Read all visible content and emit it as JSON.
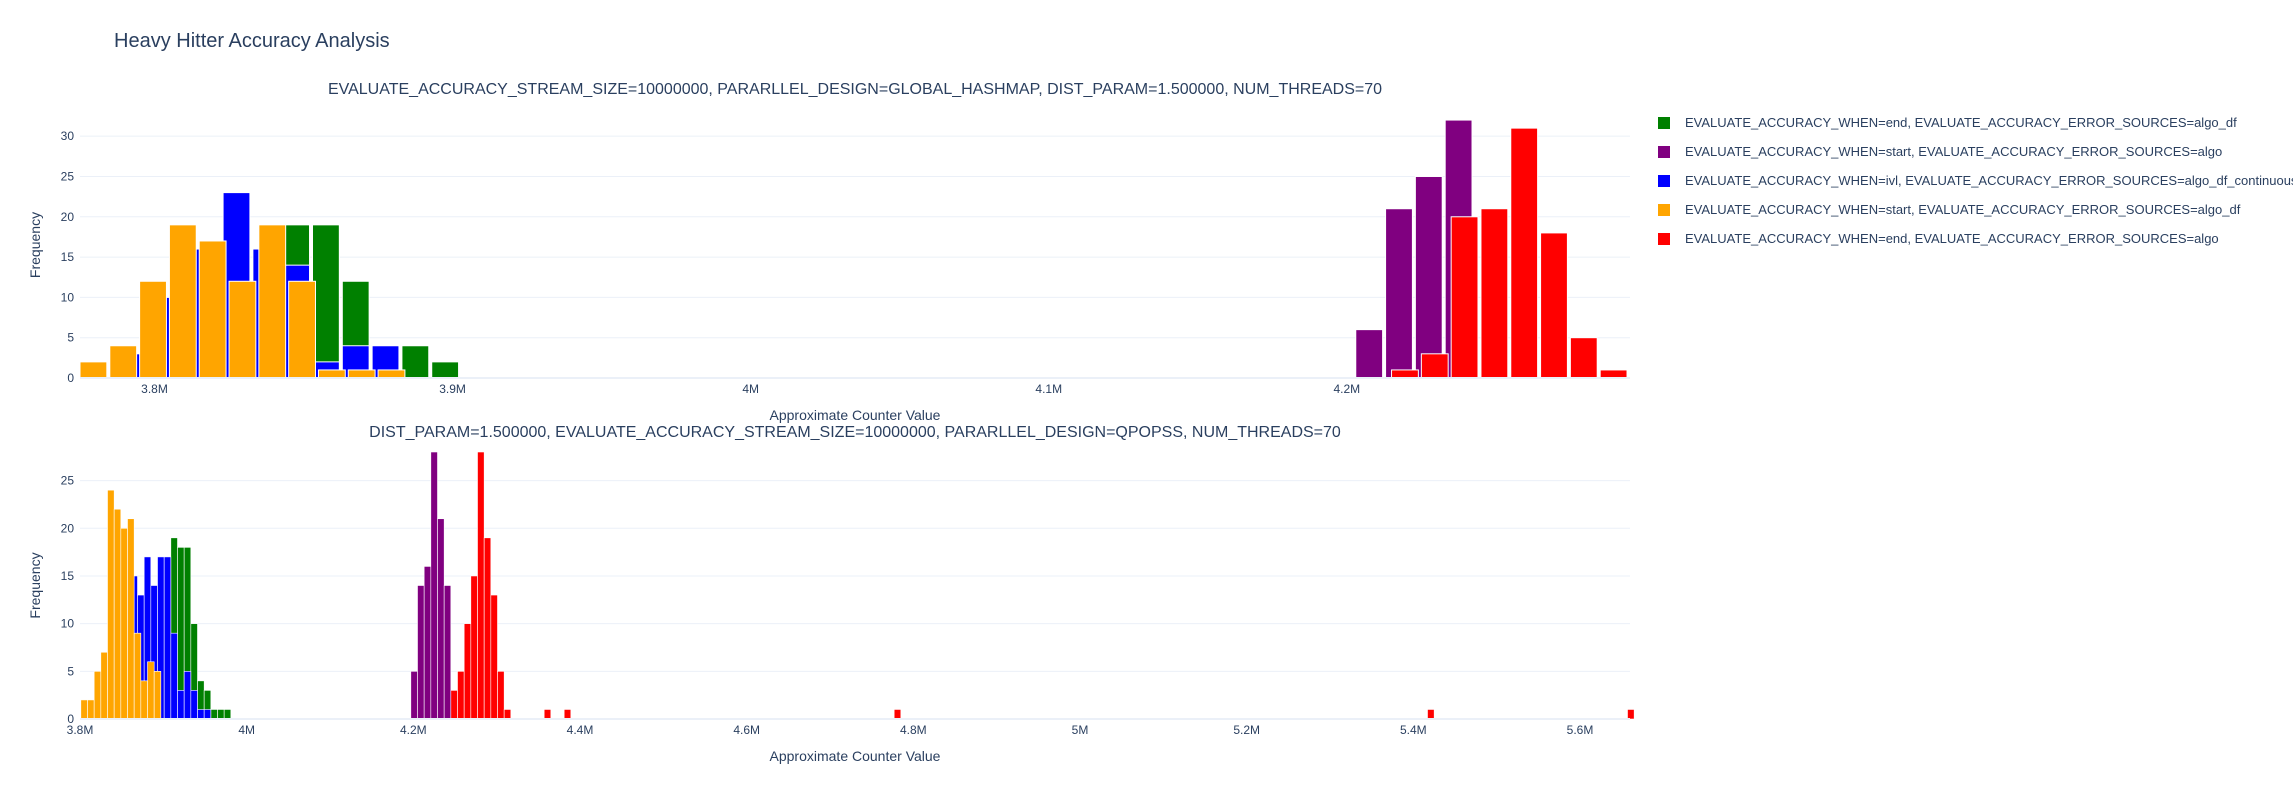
{
  "title": "Heavy Hitter Accuracy Analysis",
  "legend": [
    {
      "label": "EVALUATE_ACCURACY_WHEN=end, EVALUATE_ACCURACY_ERROR_SOURCES=algo_df",
      "color": "#008000"
    },
    {
      "label": "EVALUATE_ACCURACY_WHEN=start, EVALUATE_ACCURACY_ERROR_SOURCES=algo",
      "color": "#800080"
    },
    {
      "label": "EVALUATE_ACCURACY_WHEN=ivl, EVALUATE_ACCURACY_ERROR_SOURCES=algo_df_continuous",
      "color": "#0000ff"
    },
    {
      "label": "EVALUATE_ACCURACY_WHEN=start, EVALUATE_ACCURACY_ERROR_SOURCES=algo_df",
      "color": "#ffa500"
    },
    {
      "label": "EVALUATE_ACCURACY_WHEN=end, EVALUATE_ACCURACY_ERROR_SOURCES=algo",
      "color": "#ff0000"
    }
  ],
  "chart_data": [
    {
      "type": "bar",
      "title": "EVALUATE_ACCURACY_STREAM_SIZE=10000000, PARARLLEL_DESIGN=GLOBAL_HASHMAP, DIST_PARAM=1.500000, NUM_THREADS=70",
      "xlabel": "Approximate Counter Value",
      "ylabel": "Frequency",
      "xlim": [
        3775000,
        4295000
      ],
      "ylim": [
        0,
        33
      ],
      "xticks": [
        3800000,
        3900000,
        4000000,
        4100000,
        4200000
      ],
      "xtick_labels": [
        "3.8M",
        "3.9M",
        "4M",
        "4.1M",
        "4.2M"
      ],
      "yticks": [
        0,
        5,
        10,
        15,
        20,
        25,
        30
      ],
      "grid": true,
      "series": [
        {
          "name": "EVALUATE_ACCURACY_WHEN=end, EVALUATE_ACCURACY_ERROR_SOURCES=algo_df",
          "color": "#008000",
          "bin_width": 9000,
          "x": [
            3827500,
            3837500,
            3847500,
            3857500,
            3867500,
            3877500,
            3887500,
            3897500
          ],
          "y": [
            18,
            12,
            19,
            19,
            12,
            4,
            4,
            2
          ]
        },
        {
          "name": "EVALUATE_ACCURACY_WHEN=start, EVALUATE_ACCURACY_ERROR_SOURCES=algo",
          "color": "#800080",
          "bin_width": 9000,
          "x": [
            4207500,
            4217500,
            4227500,
            4237500
          ],
          "y": [
            6,
            21,
            25,
            32
          ]
        },
        {
          "name": "EVALUATE_ACCURACY_WHEN=ivl, EVALUATE_ACCURACY_ERROR_SOURCES=algo_df_continuous",
          "color": "#0000ff",
          "bin_width": 9000,
          "x": [
            3797500,
            3807500,
            3817500,
            3827500,
            3837500,
            3847500,
            3857500,
            3867500,
            3877500
          ],
          "y": [
            3,
            10,
            16,
            23,
            16,
            14,
            2,
            4,
            4
          ]
        },
        {
          "name": "EVALUATE_ACCURACY_WHEN=start, EVALUATE_ACCURACY_ERROR_SOURCES=algo_df",
          "color": "#ffa500",
          "bin_width": 9000,
          "x": [
            3779500,
            3789500,
            3799500,
            3809500,
            3819500,
            3829500,
            3839500,
            3849500,
            3859500,
            3869500,
            3879500
          ],
          "y": [
            2,
            4,
            12,
            19,
            17,
            12,
            19,
            12,
            1,
            1,
            1
          ]
        },
        {
          "name": "EVALUATE_ACCURACY_WHEN=end, EVALUATE_ACCURACY_ERROR_SOURCES=algo",
          "color": "#ff0000",
          "bin_width": 9000,
          "x": [
            4219500,
            4229500,
            4239500,
            4249500,
            4259500,
            4269500,
            4279500,
            4289500
          ],
          "y": [
            1,
            3,
            20,
            21,
            31,
            18,
            5,
            1
          ]
        }
      ]
    },
    {
      "type": "bar",
      "title": "DIST_PARAM=1.500000, EVALUATE_ACCURACY_STREAM_SIZE=10000000, PARARLLEL_DESIGN=QPOPSS, NUM_THREADS=70",
      "xlabel": "Approximate Counter Value",
      "ylabel": "Frequency",
      "xlim": [
        3800000,
        5660000
      ],
      "ylim": [
        0,
        28
      ],
      "xticks": [
        3800000,
        4000000,
        4200000,
        4400000,
        4600000,
        4800000,
        5000000,
        5200000,
        5400000,
        5600000
      ],
      "xtick_labels": [
        "3.8M",
        "4M",
        "4.2M",
        "4.4M",
        "4.6M",
        "4.8M",
        "5M",
        "5.2M",
        "5.4M",
        "5.6M"
      ],
      "yticks": [
        0,
        5,
        10,
        15,
        20,
        25
      ],
      "grid": true,
      "series": [
        {
          "name": "EVALUATE_ACCURACY_WHEN=end, EVALUATE_ACCURACY_ERROR_SOURCES=algo_df",
          "color": "#008000",
          "bin_width": 8000,
          "x": [
            3905000,
            3913000,
            3921000,
            3929000,
            3937000,
            3945000,
            3953000,
            3961000,
            3969000,
            3977000
          ],
          "y": [
            17,
            19,
            18,
            18,
            10,
            4,
            3,
            1,
            1,
            1
          ]
        },
        {
          "name": "EVALUATE_ACCURACY_WHEN=start, EVALUATE_ACCURACY_ERROR_SOURCES=algo",
          "color": "#800080",
          "bin_width": 8000,
          "x": [
            4201000,
            4209000,
            4217000,
            4225000,
            4233000,
            4241000
          ],
          "y": [
            5,
            14,
            16,
            28,
            21,
            14
          ]
        },
        {
          "name": "EVALUATE_ACCURACY_WHEN=ivl, EVALUATE_ACCURACY_ERROR_SOURCES=algo_df_continuous",
          "color": "#0000ff",
          "bin_width": 8000,
          "x": [
            3865000,
            3873000,
            3881000,
            3889000,
            3897000,
            3905000,
            3913000,
            3921000,
            3929000,
            3937000,
            3945000,
            3953000
          ],
          "y": [
            15,
            13,
            17,
            14,
            17,
            17,
            9,
            3,
            5,
            3,
            1,
            1
          ]
        },
        {
          "name": "EVALUATE_ACCURACY_WHEN=start, EVALUATE_ACCURACY_ERROR_SOURCES=algo_df",
          "color": "#ffa500",
          "bin_width": 8000,
          "x": [
            3805000,
            3813000,
            3821000,
            3829000,
            3837000,
            3845000,
            3853000,
            3861000,
            3869000,
            3877000,
            3885000,
            3893000
          ],
          "y": [
            2,
            2,
            5,
            7,
            24,
            22,
            20,
            21,
            9,
            4,
            6,
            5
          ]
        },
        {
          "name": "EVALUATE_ACCURACY_WHEN=end, EVALUATE_ACCURACY_ERROR_SOURCES=algo",
          "color": "#ff0000",
          "bin_width": 8000,
          "x": [
            4249000,
            4257000,
            4265000,
            4273000,
            4281000,
            4289000,
            4297000,
            4305000,
            4313000,
            4361000,
            4385000,
            4781000,
            5421000,
            5661000
          ],
          "y": [
            3,
            5,
            10,
            15,
            28,
            19,
            13,
            5,
            1,
            1,
            1,
            1,
            1,
            1
          ]
        }
      ]
    }
  ]
}
